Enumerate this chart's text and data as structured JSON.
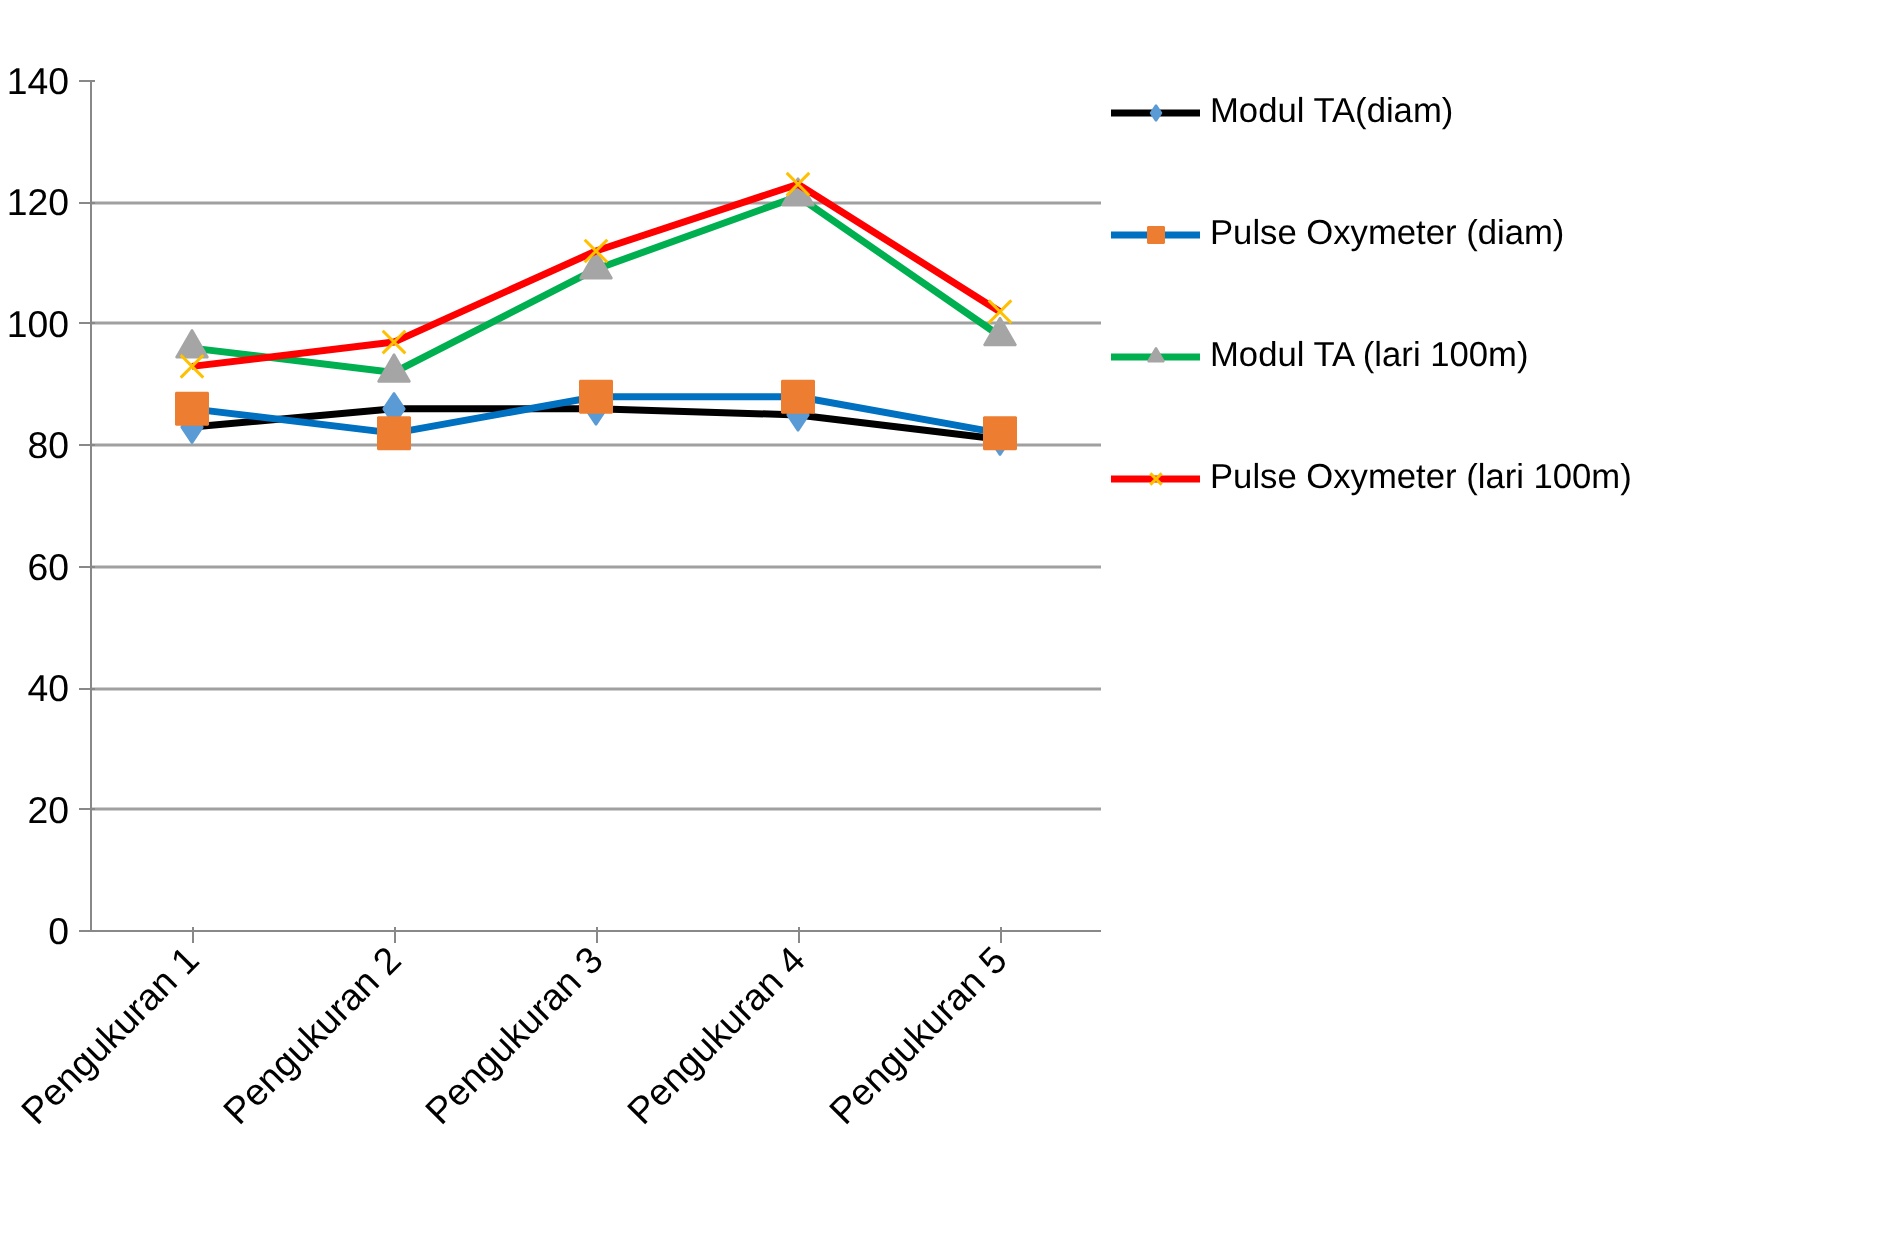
{
  "chart_data": {
    "type": "line",
    "categories": [
      "Pengukuran 1",
      "Pengukuran 2",
      "Pengukuran 3",
      "Pengukuran 4",
      "Pengukuran 5"
    ],
    "ylim": [
      0,
      140
    ],
    "yticks": [
      0,
      20,
      40,
      60,
      80,
      100,
      120,
      140
    ],
    "grid": "y",
    "legend": "right",
    "series": [
      {
        "name": "Modul TA(diam)",
        "color": "#000000",
        "marker": "diamond",
        "values": [
          83,
          86,
          86,
          85,
          81
        ]
      },
      {
        "name": "Pulse Oxymeter (diam)",
        "color": "#0070c0",
        "marker": "square",
        "values": [
          86,
          82,
          88,
          88,
          82
        ]
      },
      {
        "name": "Modul TA (lari 100m)",
        "color": "#00b050",
        "marker": "triangle",
        "values": [
          96,
          92,
          109,
          121,
          98
        ]
      },
      {
        "name": "Pulse Oxymeter (lari 100m)",
        "color": "#ff0000",
        "marker": "cross",
        "values": [
          93,
          97,
          112,
          123,
          102
        ]
      }
    ]
  }
}
